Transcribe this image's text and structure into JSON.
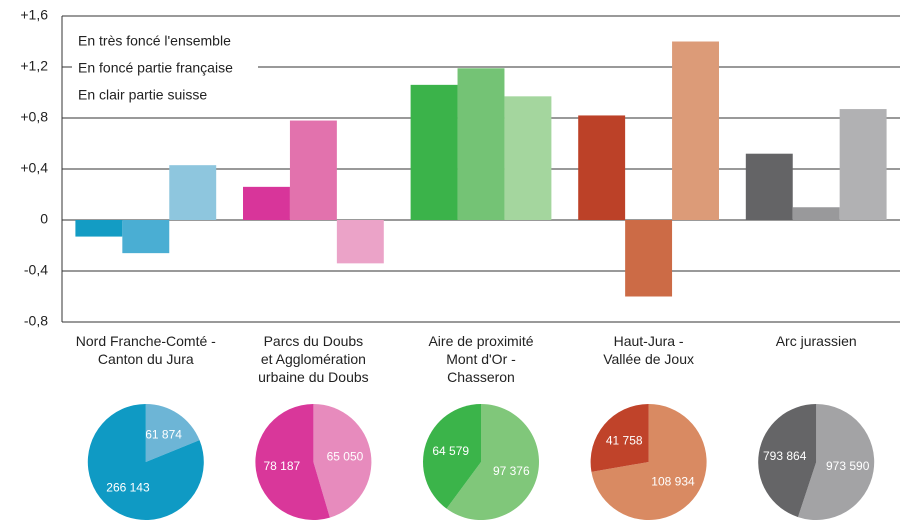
{
  "chart_data": [
    {
      "type": "bar",
      "categories": [
        "Nord Franche-Comté -\nCanton du Jura",
        "Parcs du Doubs\net Agglomération\nurbaine du Doubs",
        "Aire de proximité\nMont d'Or -\nChasseron",
        "Haut-Jura -\nVallée de Joux",
        "Arc jurassien"
      ],
      "series": [
        {
          "name": "En très foncé l'ensemble",
          "colors": [
            "#139cc4",
            "#d8359a",
            "#3bb34a",
            "#bc4128",
            "#646466"
          ],
          "values": [
            -0.13,
            0.26,
            1.06,
            0.82,
            0.52
          ]
        },
        {
          "name": "En foncé partie française",
          "colors": [
            "#4aaed3",
            "#e272ad",
            "#74c375",
            "#cc6b46",
            "#99999b"
          ],
          "values": [
            -0.26,
            0.78,
            1.19,
            -0.6,
            0.1
          ]
        },
        {
          "name": "En clair partie suisse",
          "colors": [
            "#8ec6de",
            "#eba3c8",
            "#a4d69e",
            "#dc9b78",
            "#b1b1b3"
          ],
          "values": [
            0.43,
            -0.34,
            0.97,
            1.4,
            0.87
          ]
        }
      ],
      "ylim": [
        -0.8,
        1.6
      ],
      "yticks": [
        {
          "value": -0.8,
          "label": "-0,8"
        },
        {
          "value": -0.4,
          "label": "-0,4"
        },
        0,
        {
          "value": 0.4,
          "label": "+0,4"
        },
        {
          "value": 0.8,
          "label": "+0,8"
        },
        {
          "value": 1.2,
          "label": "+1,2"
        },
        {
          "value": 1.6,
          "label": "+1,6"
        }
      ],
      "grid": true
    },
    {
      "type": "pie",
      "groups": [
        {
          "values": [
            61874,
            266143
          ],
          "value_labels": [
            "61 874",
            "266 143"
          ],
          "colors": [
            "#6db5d6",
            "#0f9ac4"
          ]
        },
        {
          "values": [
            65050,
            78187
          ],
          "value_labels": [
            "65 050",
            "78 187"
          ],
          "colors": [
            "#e78bbd",
            "#d9379a"
          ]
        },
        {
          "values": [
            97376,
            64579
          ],
          "value_labels": [
            "97 376",
            "64 579"
          ],
          "colors": [
            "#80c77a",
            "#3bb44a"
          ]
        },
        {
          "values": [
            108934,
            41758
          ],
          "value_labels": [
            "108 934",
            "41 758"
          ],
          "colors": [
            "#d98a62",
            "#c0432a"
          ]
        },
        {
          "values": [
            973590,
            793864
          ],
          "value_labels": [
            "973 590",
            "793 864"
          ],
          "colors": [
            "#a3a3a5",
            "#656567"
          ]
        }
      ]
    }
  ]
}
